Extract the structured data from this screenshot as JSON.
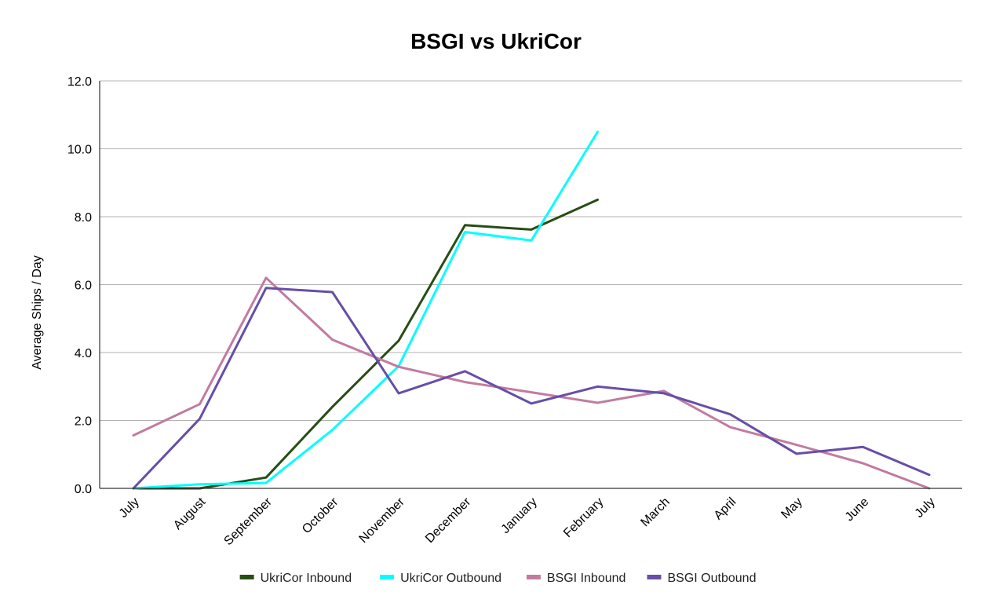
{
  "chart_data": {
    "type": "line",
    "title": "BSGI vs UkriCor",
    "ylabel": "Average Ships / Day",
    "xlabel": "",
    "ylim": [
      0,
      12
    ],
    "yticks": [
      "0.0",
      "2.0",
      "4.0",
      "6.0",
      "8.0",
      "10.0",
      "12.0"
    ],
    "grid": true,
    "legend_position": "bottom",
    "categories": [
      "July",
      "August",
      "September",
      "October",
      "November",
      "December",
      "January",
      "February",
      "March",
      "April",
      "May",
      "June",
      "July"
    ],
    "series": [
      {
        "name": "UkriCor Inbound",
        "color": "#274e13",
        "values": [
          0.0,
          0.0,
          0.32,
          2.4,
          4.35,
          7.75,
          7.62,
          8.5,
          null,
          null,
          null,
          null,
          null
        ]
      },
      {
        "name": "UkriCor Outbound",
        "color": "#00ffff",
        "values": [
          0.0,
          0.12,
          0.16,
          1.72,
          3.6,
          7.55,
          7.3,
          10.5,
          null,
          null,
          null,
          null,
          null
        ]
      },
      {
        "name": "BSGI Inbound",
        "color": "#c27ba0",
        "values": [
          1.56,
          2.48,
          6.2,
          4.38,
          3.58,
          3.13,
          2.83,
          2.52,
          2.87,
          1.8,
          1.28,
          0.74,
          0.0
        ]
      },
      {
        "name": "BSGI Outbound",
        "color": "#674ea7",
        "values": [
          0.0,
          2.05,
          5.9,
          5.78,
          2.8,
          3.45,
          2.5,
          3.0,
          2.8,
          2.18,
          1.02,
          1.22,
          0.4
        ]
      }
    ]
  }
}
